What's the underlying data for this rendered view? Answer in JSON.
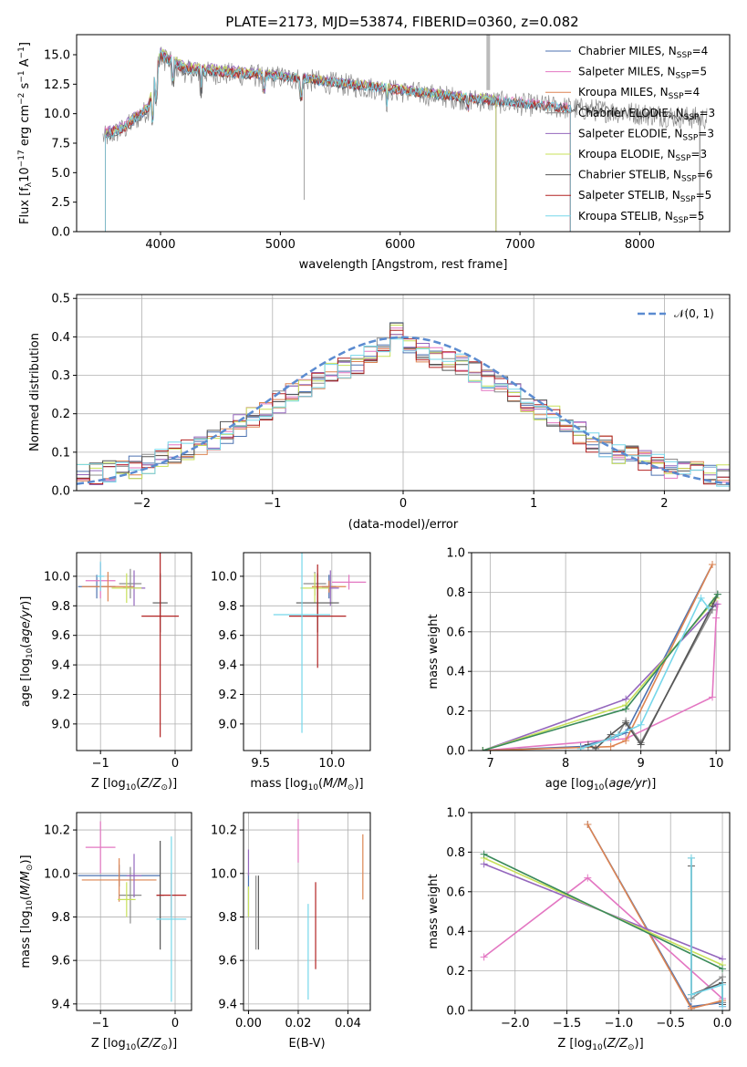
{
  "figure": {
    "title": "PLATE=2173, MJD=53874, FIBERID=0360, z=0.082"
  },
  "chart_data": [
    {
      "id": "spectrum",
      "type": "line",
      "xlabel": "wavelength [Angstrom, rest frame]",
      "ylabel": "Flux [f",
      "ylabel_full": "Flux [f_λ 10^-17 erg cm^-2 s^-1 A^-1]",
      "xlim": [
        3300,
        8750
      ],
      "ylim": [
        0,
        16.7
      ],
      "xticks": [
        4000,
        5000,
        6000,
        7000,
        8000
      ],
      "yticks": [
        0.0,
        2.5,
        5.0,
        7.5,
        10.0,
        12.5,
        15.0
      ],
      "grid": false,
      "legend": "upper right",
      "series": [
        {
          "name": "Chabrier MILES, N_SSP=4",
          "label": "Chabrier MILES, N",
          "nssp": "=4",
          "color": "#4c72b0",
          "x": [
            3540,
            3700,
            3900,
            4000,
            4200,
            4500,
            5000,
            5500,
            6000,
            6500,
            7000,
            7420
          ],
          "values": [
            8.2,
            8.8,
            10.5,
            15.0,
            13.8,
            13.5,
            13.2,
            12.6,
            12.0,
            11.4,
            10.9,
            10.4
          ]
        },
        {
          "name": "Salpeter MILES, N_SSP=5",
          "label": "Salpeter MILES, N",
          "nssp": "=5",
          "color": "#e377c2",
          "x": [
            3540,
            3700,
            3900,
            4000,
            4200,
            4500,
            5000,
            5500,
            6000,
            6500,
            7000,
            7420
          ],
          "values": [
            8.6,
            9.0,
            10.7,
            15.1,
            13.9,
            13.6,
            13.2,
            12.6,
            12.0,
            11.5,
            11.0,
            10.5
          ]
        },
        {
          "name": "Kroupa MILES, N_SSP=4",
          "label": "Kroupa MILES, N",
          "nssp": "=4",
          "color": "#dd8452",
          "x": [
            3540,
            3700,
            3900,
            4000,
            4200,
            4500,
            5000,
            5500,
            6000,
            6500,
            7000,
            7420
          ],
          "values": [
            8.3,
            8.9,
            10.6,
            15.0,
            13.8,
            13.5,
            13.2,
            12.6,
            12.0,
            11.4,
            10.9,
            10.4
          ]
        },
        {
          "name": "Chabrier ELODIE, N_SSP=3",
          "label": "Chabrier ELODIE, N",
          "nssp": "=3",
          "color": "#8c8c8c",
          "x": [
            3540,
            3700,
            3900,
            4000,
            4200,
            4500,
            5000,
            5500,
            6000,
            6500,
            6800
          ],
          "values": [
            8.3,
            9.0,
            10.6,
            15.2,
            14.0,
            13.7,
            13.3,
            12.7,
            12.1,
            11.5,
            11.2
          ]
        },
        {
          "name": "Salpeter ELODIE, N_SSP=3",
          "label": "Salpeter ELODIE, N",
          "nssp": "=3",
          "color": "#9467bd",
          "x": [
            3540,
            3700,
            3900,
            4000,
            4200,
            4500,
            5000,
            5500,
            6000,
            6500,
            6800
          ],
          "values": [
            8.4,
            9.1,
            10.7,
            15.3,
            14.1,
            13.8,
            13.3,
            12.7,
            12.1,
            11.5,
            11.2
          ]
        },
        {
          "name": "Kroupa ELODIE, N_SSP=3",
          "label": "Kroupa ELODIE, N",
          "nssp": "=3",
          "color": "#c8e05a",
          "x": [
            3540,
            3700,
            3900,
            4000,
            4200,
            4500,
            5000,
            5500,
            6000,
            6500,
            6800
          ],
          "values": [
            8.3,
            9.0,
            10.6,
            15.2,
            14.0,
            13.7,
            13.3,
            12.7,
            12.1,
            11.5,
            11.2
          ]
        },
        {
          "name": "Chabrier STELIB, N_SSP=6",
          "label": "Chabrier STELIB, N",
          "nssp": "=6",
          "color": "#555555",
          "x": [
            3540,
            3700,
            3900,
            4000,
            4200,
            4500,
            5000,
            5500,
            6000,
            6500,
            7000,
            7500,
            8000,
            8500
          ],
          "values": [
            8.0,
            8.7,
            10.4,
            14.8,
            13.6,
            13.4,
            13.1,
            12.5,
            11.9,
            11.3,
            10.8,
            10.4,
            10.0,
            9.6
          ]
        },
        {
          "name": "Salpeter STELIB, N_SSP=5",
          "label": "Salpeter STELIB, N",
          "nssp": "=5",
          "color": "#b22222",
          "x": [
            3540,
            3700,
            3900,
            4000,
            4200,
            4500,
            5000,
            5500,
            6000,
            6500,
            7000,
            7420
          ],
          "values": [
            8.2,
            8.8,
            10.5,
            15.0,
            13.8,
            13.5,
            13.2,
            12.6,
            12.0,
            11.4,
            10.9,
            10.4
          ]
        },
        {
          "name": "Kroupa STELIB, N_SSP=5",
          "label": "Kroupa STELIB, N",
          "nssp": "=5",
          "color": "#76d7ea",
          "x": [
            3540,
            3700,
            3900,
            4000,
            4200,
            4500,
            5000,
            5500,
            6000,
            6500,
            7000,
            7420
          ],
          "values": [
            8.2,
            8.8,
            10.5,
            15.0,
            13.8,
            13.5,
            13.2,
            12.6,
            12.0,
            11.4,
            10.9,
            10.4
          ]
        }
      ]
    },
    {
      "id": "residuals",
      "type": "line",
      "xlabel": "(data-model)/error",
      "ylabel": "Normed distribution",
      "xlim": [
        -2.5,
        2.5
      ],
      "ylim": [
        0,
        0.51
      ],
      "xticks": [
        -2,
        -1,
        0,
        1,
        2
      ],
      "yticks": [
        0.0,
        0.1,
        0.2,
        0.3,
        0.4,
        0.5
      ],
      "grid": true,
      "legend": "upper right",
      "reference": {
        "name": "𝒩(0, 1)",
        "color": "#5b8bd0",
        "style": "dashed"
      },
      "bin_edges_start": -2.5,
      "bin_width": 0.1,
      "hist_base": [
        0.04,
        0.045,
        0.05,
        0.055,
        0.06,
        0.07,
        0.085,
        0.1,
        0.11,
        0.12,
        0.135,
        0.15,
        0.17,
        0.19,
        0.21,
        0.23,
        0.25,
        0.27,
        0.29,
        0.31,
        0.32,
        0.33,
        0.35,
        0.37,
        0.41,
        0.37,
        0.36,
        0.35,
        0.34,
        0.33,
        0.31,
        0.29,
        0.27,
        0.25,
        0.23,
        0.21,
        0.19,
        0.17,
        0.15,
        0.13,
        0.115,
        0.1,
        0.09,
        0.08,
        0.07,
        0.06,
        0.055,
        0.05,
        0.045,
        0.04
      ]
    },
    {
      "id": "age-vs-Z",
      "type": "scatter",
      "xlabel": "Z [log",
      "ylabel": "age  [log",
      "xlim": [
        -1.32,
        0.22
      ],
      "ylim": [
        8.82,
        10.16
      ],
      "xticks": [
        -1,
        0
      ],
      "yticks": [
        9.0,
        9.2,
        9.4,
        9.6,
        9.8,
        10.0
      ],
      "grid": true,
      "points": [
        {
          "color": "#4c72b0",
          "x": -1.05,
          "y": 9.93,
          "xerr": 0.25,
          "yerr": 0.08
        },
        {
          "color": "#e377c2",
          "x": -1.0,
          "y": 9.97,
          "xerr": 0.2,
          "yerr": 0.12
        },
        {
          "color": "#dd8452",
          "x": -0.9,
          "y": 9.93,
          "xerr": 0.35,
          "yerr": 0.1
        },
        {
          "color": "#8c8c8c",
          "x": -0.6,
          "y": 9.95,
          "xerr": 0.15,
          "yerr": 0.1
        },
        {
          "color": "#9467bd",
          "x": -0.55,
          "y": 9.92,
          "xerr": 0.15,
          "yerr": 0.12
        },
        {
          "color": "#c8e05a",
          "x": -0.65,
          "y": 9.92,
          "xerr": 0.2,
          "yerr": 0.1
        },
        {
          "color": "#555555",
          "x": -0.2,
          "y": 9.82,
          "xerr": 0.1,
          "yerr": 0.2
        },
        {
          "color": "#b22222",
          "x": -0.2,
          "y": 9.73,
          "xerr": 0.25,
          "yerr": 0.82
        },
        {
          "color": "#76d7ea",
          "x": -1.0,
          "y": 10.0,
          "xerr": 0.05,
          "yerr": 0.1
        }
      ]
    },
    {
      "id": "age-vs-mass",
      "type": "scatter",
      "xlabel": "mass [log",
      "xlim": [
        9.38,
        10.27
      ],
      "ylim": [
        8.82,
        10.16
      ],
      "xticks": [
        9.5,
        10.0
      ],
      "yticks": [
        9.0,
        9.2,
        9.4,
        9.6,
        9.8,
        10.0
      ],
      "grid": true,
      "points": [
        {
          "color": "#4c72b0",
          "x": 9.98,
          "y": 9.93,
          "xerr": 0.05,
          "yerr": 0.08
        },
        {
          "color": "#e377c2",
          "x": 10.12,
          "y": 9.96,
          "xerr": 0.12,
          "yerr": 0.05
        },
        {
          "color": "#dd8452",
          "x": 9.98,
          "y": 9.93,
          "xerr": 0.12,
          "yerr": 0.04
        },
        {
          "color": "#8c8c8c",
          "x": 9.88,
          "y": 9.95,
          "xerr": 0.08,
          "yerr": 0.08
        },
        {
          "color": "#9467bd",
          "x": 9.99,
          "y": 9.92,
          "xerr": 0.06,
          "yerr": 0.12
        },
        {
          "color": "#c8e05a",
          "x": 9.88,
          "y": 9.92,
          "xerr": 0.1,
          "yerr": 0.1
        },
        {
          "color": "#555555",
          "x": 9.9,
          "y": 9.82,
          "xerr": 0.15,
          "yerr": 0.2
        },
        {
          "color": "#b22222",
          "x": 9.9,
          "y": 9.73,
          "xerr": 0.2,
          "yerr": 0.35
        },
        {
          "color": "#76d7ea",
          "x": 9.79,
          "y": 9.74,
          "xerr": 0.2,
          "yerr": 0.8
        }
      ]
    },
    {
      "id": "weight-vs-age",
      "type": "line",
      "xlabel": "age  [log",
      "ylabel": "mass weight",
      "xlim": [
        6.75,
        10.18
      ],
      "ylim": [
        0,
        1.0
      ],
      "xticks": [
        7,
        8,
        9,
        10
      ],
      "yticks": [
        0.0,
        0.2,
        0.4,
        0.6,
        0.8,
        1.0
      ],
      "grid": true,
      "series": [
        {
          "color": "#4c72b0",
          "x": [
            6.9,
            8.2,
            8.6,
            8.8,
            9.95
          ],
          "values": [
            0.0,
            0.02,
            0.06,
            0.09,
            0.94
          ]
        },
        {
          "color": "#e377c2",
          "x": [
            6.9,
            8.8,
            9.95,
            10.0,
            10.02
          ],
          "values": [
            0.0,
            0.06,
            0.27,
            0.67,
            0.74
          ]
        },
        {
          "color": "#dd8452",
          "x": [
            6.9,
            8.6,
            8.8,
            9.95
          ],
          "values": [
            0.0,
            0.02,
            0.05,
            0.94
          ]
        },
        {
          "color": "#8c8c8c",
          "x": [
            8.3,
            8.7,
            8.8,
            9.0,
            9.95
          ],
          "values": [
            0.02,
            0.08,
            0.15,
            0.04,
            0.71
          ]
        },
        {
          "color": "#9467bd",
          "x": [
            6.9,
            8.8,
            10.0
          ],
          "values": [
            0.0,
            0.26,
            0.74
          ]
        },
        {
          "color": "#c8e05a",
          "x": [
            6.9,
            8.8,
            10.0
          ],
          "values": [
            0.0,
            0.23,
            0.77
          ]
        },
        {
          "color": "#555555",
          "x": [
            8.3,
            8.4,
            8.6,
            8.8,
            9.0,
            9.95,
            10.02
          ],
          "values": [
            0.03,
            0.01,
            0.08,
            0.14,
            0.03,
            0.73,
            0.79
          ]
        },
        {
          "color": "#3a8a5a",
          "x": [
            6.9,
            8.8,
            10.02
          ],
          "values": [
            0.0,
            0.21,
            0.79
          ]
        },
        {
          "color": "#76d7ea",
          "x": [
            8.2,
            8.6,
            8.7,
            9.0,
            9.8,
            9.9
          ],
          "values": [
            0.01,
            0.06,
            0.08,
            0.13,
            0.77,
            0.72
          ]
        }
      ]
    },
    {
      "id": "mass-vs-Z",
      "type": "scatter",
      "xlabel": "Z [log",
      "ylabel": "mass [log",
      "xlim": [
        -1.32,
        0.22
      ],
      "ylim": [
        9.37,
        10.28
      ],
      "xticks": [
        -1,
        0
      ],
      "yticks": [
        9.4,
        9.6,
        9.8,
        10.0,
        10.2
      ],
      "grid": true,
      "points": [
        {
          "color": "#4c72b0",
          "x": -0.75,
          "y": 9.99,
          "xerr": 0.55,
          "yerr": 0.05
        },
        {
          "color": "#e377c2",
          "x": -1.0,
          "y": 10.12,
          "xerr": 0.2,
          "yerr": 0.12
        },
        {
          "color": "#dd8452",
          "x": -0.75,
          "y": 9.97,
          "xerr": 0.5,
          "yerr": 0.1
        },
        {
          "color": "#8c8c8c",
          "x": -0.6,
          "y": 9.9,
          "xerr": 0.15,
          "yerr": 0.13
        },
        {
          "color": "#9467bd",
          "x": -0.55,
          "y": 9.99,
          "xerr": 0.1,
          "yerr": 0.1
        },
        {
          "color": "#c8e05a",
          "x": -0.65,
          "y": 9.88,
          "xerr": 0.12,
          "yerr": 0.08
        },
        {
          "color": "#555555",
          "x": -0.2,
          "y": 9.9,
          "xerr": 0.05,
          "yerr": 0.25
        },
        {
          "color": "#b22222",
          "x": -0.05,
          "y": 9.9,
          "xerr": 0.2,
          "yerr": 0.1
        },
        {
          "color": "#76d7ea",
          "x": -0.05,
          "y": 9.79,
          "xerr": 0.2,
          "yerr": 0.38
        }
      ]
    },
    {
      "id": "mass-vs-EBV",
      "type": "scatter",
      "xlabel": "E(B-V)",
      "xlim": [
        -0.002,
        0.049
      ],
      "ylim": [
        9.37,
        10.28
      ],
      "xticks": [
        0.0,
        0.02,
        0.04
      ],
      "yticks": [
        9.4,
        9.6,
        9.8,
        10.0,
        10.2
      ],
      "grid": true,
      "points": [
        {
          "color": "#4c72b0",
          "x": 0.0,
          "y": 9.9,
          "xerr": 0.0,
          "yerr": 0.1
        },
        {
          "color": "#e377c2",
          "x": 0.02,
          "y": 10.15,
          "xerr": 0.0,
          "yerr": 0.1
        },
        {
          "color": "#dd8452",
          "x": 0.046,
          "y": 10.03,
          "xerr": 0.0,
          "yerr": 0.15
        },
        {
          "color": "#8c8c8c",
          "x": 0.003,
          "y": 9.82,
          "xerr": 0.0,
          "yerr": 0.17
        },
        {
          "color": "#9467bd",
          "x": 0.0,
          "y": 10.05,
          "xerr": 0.0,
          "yerr": 0.06
        },
        {
          "color": "#c8e05a",
          "x": 0.0,
          "y": 9.87,
          "xerr": 0.0,
          "yerr": 0.07
        },
        {
          "color": "#555555",
          "x": 0.004,
          "y": 9.82,
          "xerr": 0.0,
          "yerr": 0.17
        },
        {
          "color": "#b22222",
          "x": 0.027,
          "y": 9.76,
          "xerr": 0.0,
          "yerr": 0.2
        },
        {
          "color": "#76d7ea",
          "x": 0.024,
          "y": 9.64,
          "xerr": 0.0,
          "yerr": 0.22
        }
      ]
    },
    {
      "id": "weight-vs-Z",
      "type": "line",
      "xlabel": "Z [log",
      "ylabel": "mass weight",
      "xlim": [
        -2.42,
        0.07
      ],
      "ylim": [
        0,
        1.0
      ],
      "xticks": [
        -2.0,
        -1.5,
        -1.0,
        -0.5,
        0.0
      ],
      "yticks": [
        0.0,
        0.2,
        0.4,
        0.6,
        0.8,
        1.0
      ],
      "grid": true,
      "series": [
        {
          "color": "#4c72b0",
          "x": [
            -1.3,
            -0.3,
            0.0,
            0.0
          ],
          "values": [
            0.94,
            0.02,
            0.04,
            0.02
          ]
        },
        {
          "color": "#e377c2",
          "x": [
            -2.3,
            -1.3,
            0.0,
            0.0
          ],
          "values": [
            0.27,
            0.67,
            0.06,
            0.02
          ]
        },
        {
          "color": "#dd8452",
          "x": [
            -1.3,
            -0.3,
            0.0
          ],
          "values": [
            0.94,
            0.01,
            0.05
          ]
        },
        {
          "color": "#8c8c8c",
          "x": [
            -0.3,
            -0.3,
            0.0,
            0.0
          ],
          "values": [
            0.77,
            0.06,
            0.17,
            0.04
          ]
        },
        {
          "color": "#9467bd",
          "x": [
            -2.3,
            0.0
          ],
          "values": [
            0.74,
            0.26
          ]
        },
        {
          "color": "#c8e05a",
          "x": [
            -2.3,
            0.0
          ],
          "values": [
            0.77,
            0.23
          ]
        },
        {
          "color": "#555555",
          "x": [
            -0.3,
            -0.3,
            0.0,
            0.0
          ],
          "values": [
            0.73,
            0.08,
            0.14,
            0.03
          ]
        },
        {
          "color": "#3a8a5a",
          "x": [
            -2.3,
            0.0
          ],
          "values": [
            0.79,
            0.21
          ]
        },
        {
          "color": "#76d7ea",
          "x": [
            -0.3,
            -0.3,
            0.0,
            0.0
          ],
          "values": [
            0.77,
            0.08,
            0.13,
            0.02
          ]
        }
      ]
    }
  ]
}
